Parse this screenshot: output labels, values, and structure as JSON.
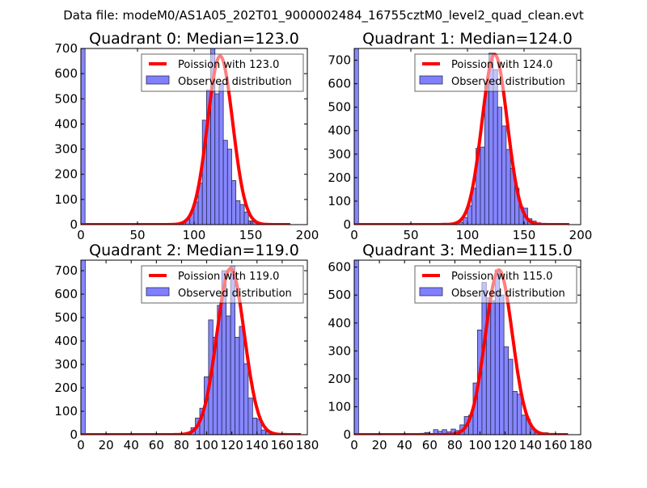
{
  "suptitle": "Data file: modeM0/AS1A05_202T01_9000002484_16755cztM0_level2_quad_clean.evt",
  "colors": {
    "bar_fill": "#8080ff",
    "bar_edge": "#2a2a55",
    "curve": "#ff0000"
  },
  "chart_data": [
    {
      "type": "bar",
      "title": "Quadrant 0: Median=123.0",
      "xlim": [
        0,
        200
      ],
      "ylim": [
        0,
        700
      ],
      "xticks": [
        0,
        50,
        100,
        150,
        200
      ],
      "yticks": [
        0,
        100,
        200,
        300,
        400,
        500,
        600,
        700
      ],
      "bin_width": 3.7,
      "bins": [
        [
          0,
          760
        ],
        [
          74,
          5
        ],
        [
          81.4,
          5
        ],
        [
          88.8,
          10
        ],
        [
          92.5,
          20
        ],
        [
          96.2,
          45
        ],
        [
          99.9,
          90
        ],
        [
          103.6,
          165
        ],
        [
          107.3,
          415
        ],
        [
          111,
          535
        ],
        [
          114.7,
          700
        ],
        [
          118.4,
          520
        ],
        [
          122.1,
          560
        ],
        [
          125.8,
          335
        ],
        [
          129.5,
          300
        ],
        [
          133.2,
          175
        ],
        [
          136.9,
          95
        ],
        [
          140.6,
          80
        ],
        [
          144.3,
          50
        ],
        [
          148,
          15
        ],
        [
          151.7,
          12
        ],
        [
          155.4,
          8
        ],
        [
          159.1,
          3
        ]
      ],
      "poisson": {
        "lambda": 123.0,
        "peak": 670,
        "x_range": [
          0,
          185
        ]
      },
      "legend": {
        "curve_label": "Poission with 123.0",
        "bars_label": "Observed distribution",
        "position": "upper-right"
      }
    },
    {
      "type": "bar",
      "title": "Quadrant 1: Median=124.0",
      "xlim": [
        0,
        200
      ],
      "ylim": [
        0,
        750
      ],
      "xticks": [
        0,
        50,
        100,
        150,
        200
      ],
      "yticks": [
        0,
        100,
        200,
        300,
        400,
        500,
        600,
        700
      ],
      "bin_width": 3.8,
      "bins": [
        [
          0,
          760
        ],
        [
          62,
          3
        ],
        [
          69.6,
          5
        ],
        [
          73.4,
          5
        ],
        [
          77.2,
          6
        ],
        [
          81,
          4
        ],
        [
          92.4,
          10
        ],
        [
          96.2,
          30
        ],
        [
          100,
          80
        ],
        [
          103.8,
          155
        ],
        [
          107.6,
          325
        ],
        [
          111.4,
          330
        ],
        [
          115.2,
          600
        ],
        [
          119,
          730
        ],
        [
          122.8,
          660
        ],
        [
          126.6,
          500
        ],
        [
          130.4,
          420
        ],
        [
          134.2,
          320
        ],
        [
          138,
          240
        ],
        [
          141.8,
          155
        ],
        [
          145.6,
          75
        ],
        [
          149.4,
          70
        ],
        [
          153.2,
          25
        ],
        [
          157,
          15
        ],
        [
          160.8,
          8
        ]
      ],
      "poisson": {
        "lambda": 124.0,
        "peak": 725,
        "x_range": [
          0,
          190
        ]
      },
      "legend": {
        "curve_label": "Poission with 124.0",
        "bars_label": "Observed distribution",
        "position": "upper-right"
      }
    },
    {
      "type": "bar",
      "title": "Quadrant 2: Median=119.0",
      "xlim": [
        0,
        180
      ],
      "ylim": [
        0,
        745
      ],
      "xticks": [
        0,
        20,
        40,
        60,
        80,
        100,
        120,
        140,
        160,
        180
      ],
      "yticks": [
        0,
        100,
        200,
        300,
        400,
        500,
        600,
        700
      ],
      "bin_width": 3.5,
      "bins": [
        [
          0,
          760
        ],
        [
          66.5,
          5
        ],
        [
          70,
          5
        ],
        [
          73.5,
          4
        ],
        [
          84,
          10
        ],
        [
          87.5,
          30
        ],
        [
          91,
          71
        ],
        [
          94.5,
          113
        ],
        [
          98,
          247
        ],
        [
          101.5,
          490
        ],
        [
          105,
          416
        ],
        [
          108.5,
          552
        ],
        [
          112,
          700
        ],
        [
          115.5,
          507
        ],
        [
          119,
          720
        ],
        [
          122.5,
          416
        ],
        [
          126,
          462
        ],
        [
          129.5,
          303
        ],
        [
          133,
          156
        ],
        [
          136.5,
          71
        ],
        [
          140,
          66
        ],
        [
          143.5,
          20
        ],
        [
          147,
          12
        ],
        [
          150.5,
          5
        ]
      ],
      "poisson": {
        "lambda": 119.0,
        "peak": 710,
        "x_range": [
          0,
          175
        ]
      },
      "legend": {
        "curve_label": "Poission with 119.0",
        "bars_label": "Observed distribution",
        "position": "upper-right"
      }
    },
    {
      "type": "bar",
      "title": "Quadrant 3: Median=115.0",
      "xlim": [
        0,
        180
      ],
      "ylim": [
        0,
        625
      ],
      "xticks": [
        0,
        20,
        40,
        60,
        80,
        100,
        120,
        140,
        160,
        180
      ],
      "yticks": [
        0,
        100,
        200,
        300,
        400,
        500,
        600
      ],
      "bin_width": 3.5,
      "bins": [
        [
          0,
          640
        ],
        [
          38.5,
          4
        ],
        [
          52.5,
          5
        ],
        [
          56,
          8
        ],
        [
          63,
          18
        ],
        [
          66.5,
          12
        ],
        [
          70,
          18
        ],
        [
          73.5,
          10
        ],
        [
          77,
          20
        ],
        [
          80.5,
          15
        ],
        [
          84,
          35
        ],
        [
          87.5,
          65
        ],
        [
          91,
          70
        ],
        [
          94.5,
          185
        ],
        [
          98,
          375
        ],
        [
          101.5,
          545
        ],
        [
          105,
          490
        ],
        [
          108.5,
          480
        ],
        [
          112,
          590
        ],
        [
          115.5,
          500
        ],
        [
          119,
          315
        ],
        [
          122.5,
          270
        ],
        [
          126,
          155
        ],
        [
          129.5,
          145
        ],
        [
          133,
          70
        ],
        [
          136.5,
          55
        ],
        [
          140,
          20
        ],
        [
          143.5,
          8
        ],
        [
          147,
          5
        ],
        [
          150.5,
          7
        ]
      ],
      "poisson": {
        "lambda": 115.0,
        "peak": 590,
        "x_range": [
          0,
          170
        ]
      },
      "legend": {
        "curve_label": "Poission with 115.0",
        "bars_label": "Observed distribution",
        "position": "upper-right"
      }
    }
  ]
}
